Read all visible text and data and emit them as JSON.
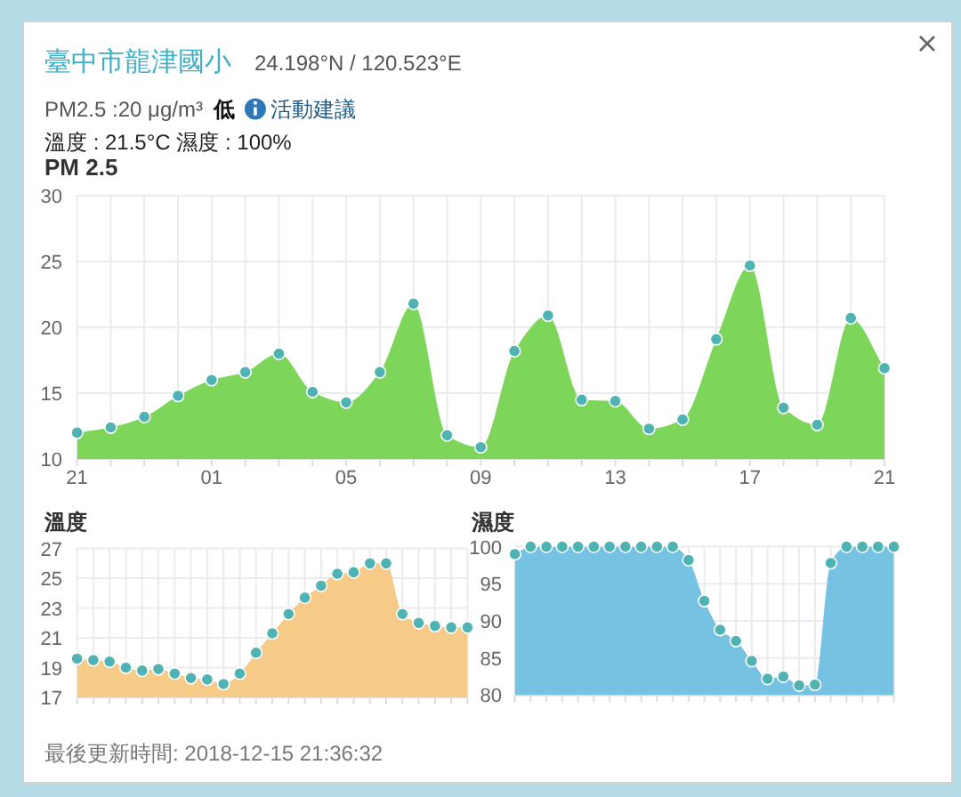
{
  "chart_data": [
    {
      "type": "other",
      "title": "臺中市龍津國小",
      "subtitle": "24.198°N / 120.523°E",
      "annotations": [
        "PM2.5 :20 μg/m³",
        "低",
        "活動建議",
        "溫度 : 21.5°C 濕度 : 100%",
        "最後更新時間: 2018-12-15 21:36:32"
      ]
    },
    {
      "type": "area",
      "title": "PM 2.5",
      "x": [
        "2018-12-14T21:00",
        "2018-12-14T22:00",
        "2018-12-14T23:00",
        "2018-12-15T00:00",
        "2018-12-15T01:00",
        "2018-12-15T02:00",
        "2018-12-15T03:00",
        "2018-12-15T04:00",
        "2018-12-15T05:00",
        "2018-12-15T06:00",
        "2018-12-15T07:00",
        "2018-12-15T08:00",
        "2018-12-15T09:00",
        "2018-12-15T10:00",
        "2018-12-15T11:00",
        "2018-12-15T12:00",
        "2018-12-15T13:00",
        "2018-12-15T14:00",
        "2018-12-15T15:00",
        "2018-12-15T16:00",
        "2018-12-15T17:00",
        "2018-12-15T18:00",
        "2018-12-15T19:00",
        "2018-12-15T20:00",
        "2018-12-15T21:00"
      ],
      "xlim": [
        "2018-12-14T21:00",
        "2018-12-15T21:00"
      ],
      "xticks": [
        {
          "value": "2018-12-14T21:00",
          "label": "21"
        },
        {
          "value": "2018-12-14T22:00",
          "label": null
        },
        {
          "value": "2018-12-14T23:00",
          "label": null
        },
        {
          "value": "2018-12-15T00:00",
          "label": null
        },
        {
          "value": "2018-12-15T01:00",
          "label": "01"
        },
        {
          "value": "2018-12-15T02:00",
          "label": null
        },
        {
          "value": "2018-12-15T03:00",
          "label": null
        },
        {
          "value": "2018-12-15T04:00",
          "label": null
        },
        {
          "value": "2018-12-15T05:00",
          "label": "05"
        },
        {
          "value": "2018-12-15T06:00",
          "label": null
        },
        {
          "value": "2018-12-15T07:00",
          "label": null
        },
        {
          "value": "2018-12-15T08:00",
          "label": null
        },
        {
          "value": "2018-12-15T09:00",
          "label": "09"
        },
        {
          "value": "2018-12-15T10:00",
          "label": null
        },
        {
          "value": "2018-12-15T11:00",
          "label": null
        },
        {
          "value": "2018-12-15T12:00",
          "label": null
        },
        {
          "value": "2018-12-15T13:00",
          "label": "13"
        },
        {
          "value": "2018-12-15T14:00",
          "label": null
        },
        {
          "value": "2018-12-15T15:00",
          "label": null
        },
        {
          "value": "2018-12-15T16:00",
          "label": null
        },
        {
          "value": "2018-12-15T17:00",
          "label": "17"
        },
        {
          "value": "2018-12-15T18:00",
          "label": null
        },
        {
          "value": "2018-12-15T19:00",
          "label": null
        },
        {
          "value": "2018-12-15T20:00",
          "label": null
        },
        {
          "value": "2018-12-15T21:00",
          "label": "21"
        }
      ],
      "values": [
        12,
        12.4,
        13.2,
        14.8,
        16,
        16.6,
        18,
        15.1,
        14.3,
        16.6,
        21.8,
        11.8,
        10.9,
        18.2,
        20.9,
        14.5,
        14.4,
        12.3,
        13,
        19.1,
        24.7,
        13.9,
        12.6,
        20.7,
        16.9
      ],
      "color": "#7dd65a",
      "ylim": [
        10,
        30
      ],
      "yticks": [
        10,
        15,
        20,
        25,
        30
      ],
      "grid": true,
      "marker": "circle"
    },
    {
      "type": "area",
      "title": "溫度",
      "categories": [
        null,
        null,
        null,
        null,
        null,
        null,
        null,
        null,
        null,
        null,
        null,
        null,
        null,
        null,
        null,
        null,
        null,
        null,
        null,
        null,
        null,
        null,
        null,
        null,
        null
      ],
      "values": [
        19.6,
        19.5,
        19.4,
        19,
        18.8,
        18.9,
        18.6,
        18.3,
        18.2,
        17.9,
        18.6,
        20,
        21.3,
        22.6,
        23.7,
        24.5,
        25.3,
        25.4,
        26,
        26,
        22.6,
        22,
        21.8,
        21.7,
        21.7
      ],
      "color": "#f6cb88",
      "ylim": [
        17,
        27
      ],
      "yticks": [
        17,
        19,
        21,
        23,
        25,
        27
      ],
      "grid": true,
      "marker": "circle",
      "tick_labels": "y"
    },
    {
      "type": "area",
      "title": "濕度",
      "categories": [
        null,
        null,
        null,
        null,
        null,
        null,
        null,
        null,
        null,
        null,
        null,
        null,
        null,
        null,
        null,
        null,
        null,
        null,
        null,
        null,
        null,
        null,
        null,
        null,
        null
      ],
      "values": [
        99,
        100,
        100,
        100,
        100,
        100,
        100,
        100,
        100,
        100,
        100,
        98.2,
        92.7,
        88.8,
        87.3,
        84.6,
        82.2,
        82.5,
        81.3,
        81.4,
        97.8,
        100,
        100,
        100,
        100
      ],
      "color": "#76c2e2",
      "ylim": [
        80,
        100
      ],
      "yticks": [
        80,
        85,
        90,
        95,
        100
      ],
      "grid": true,
      "marker": "circle",
      "tick_labels": "y"
    }
  ]
}
